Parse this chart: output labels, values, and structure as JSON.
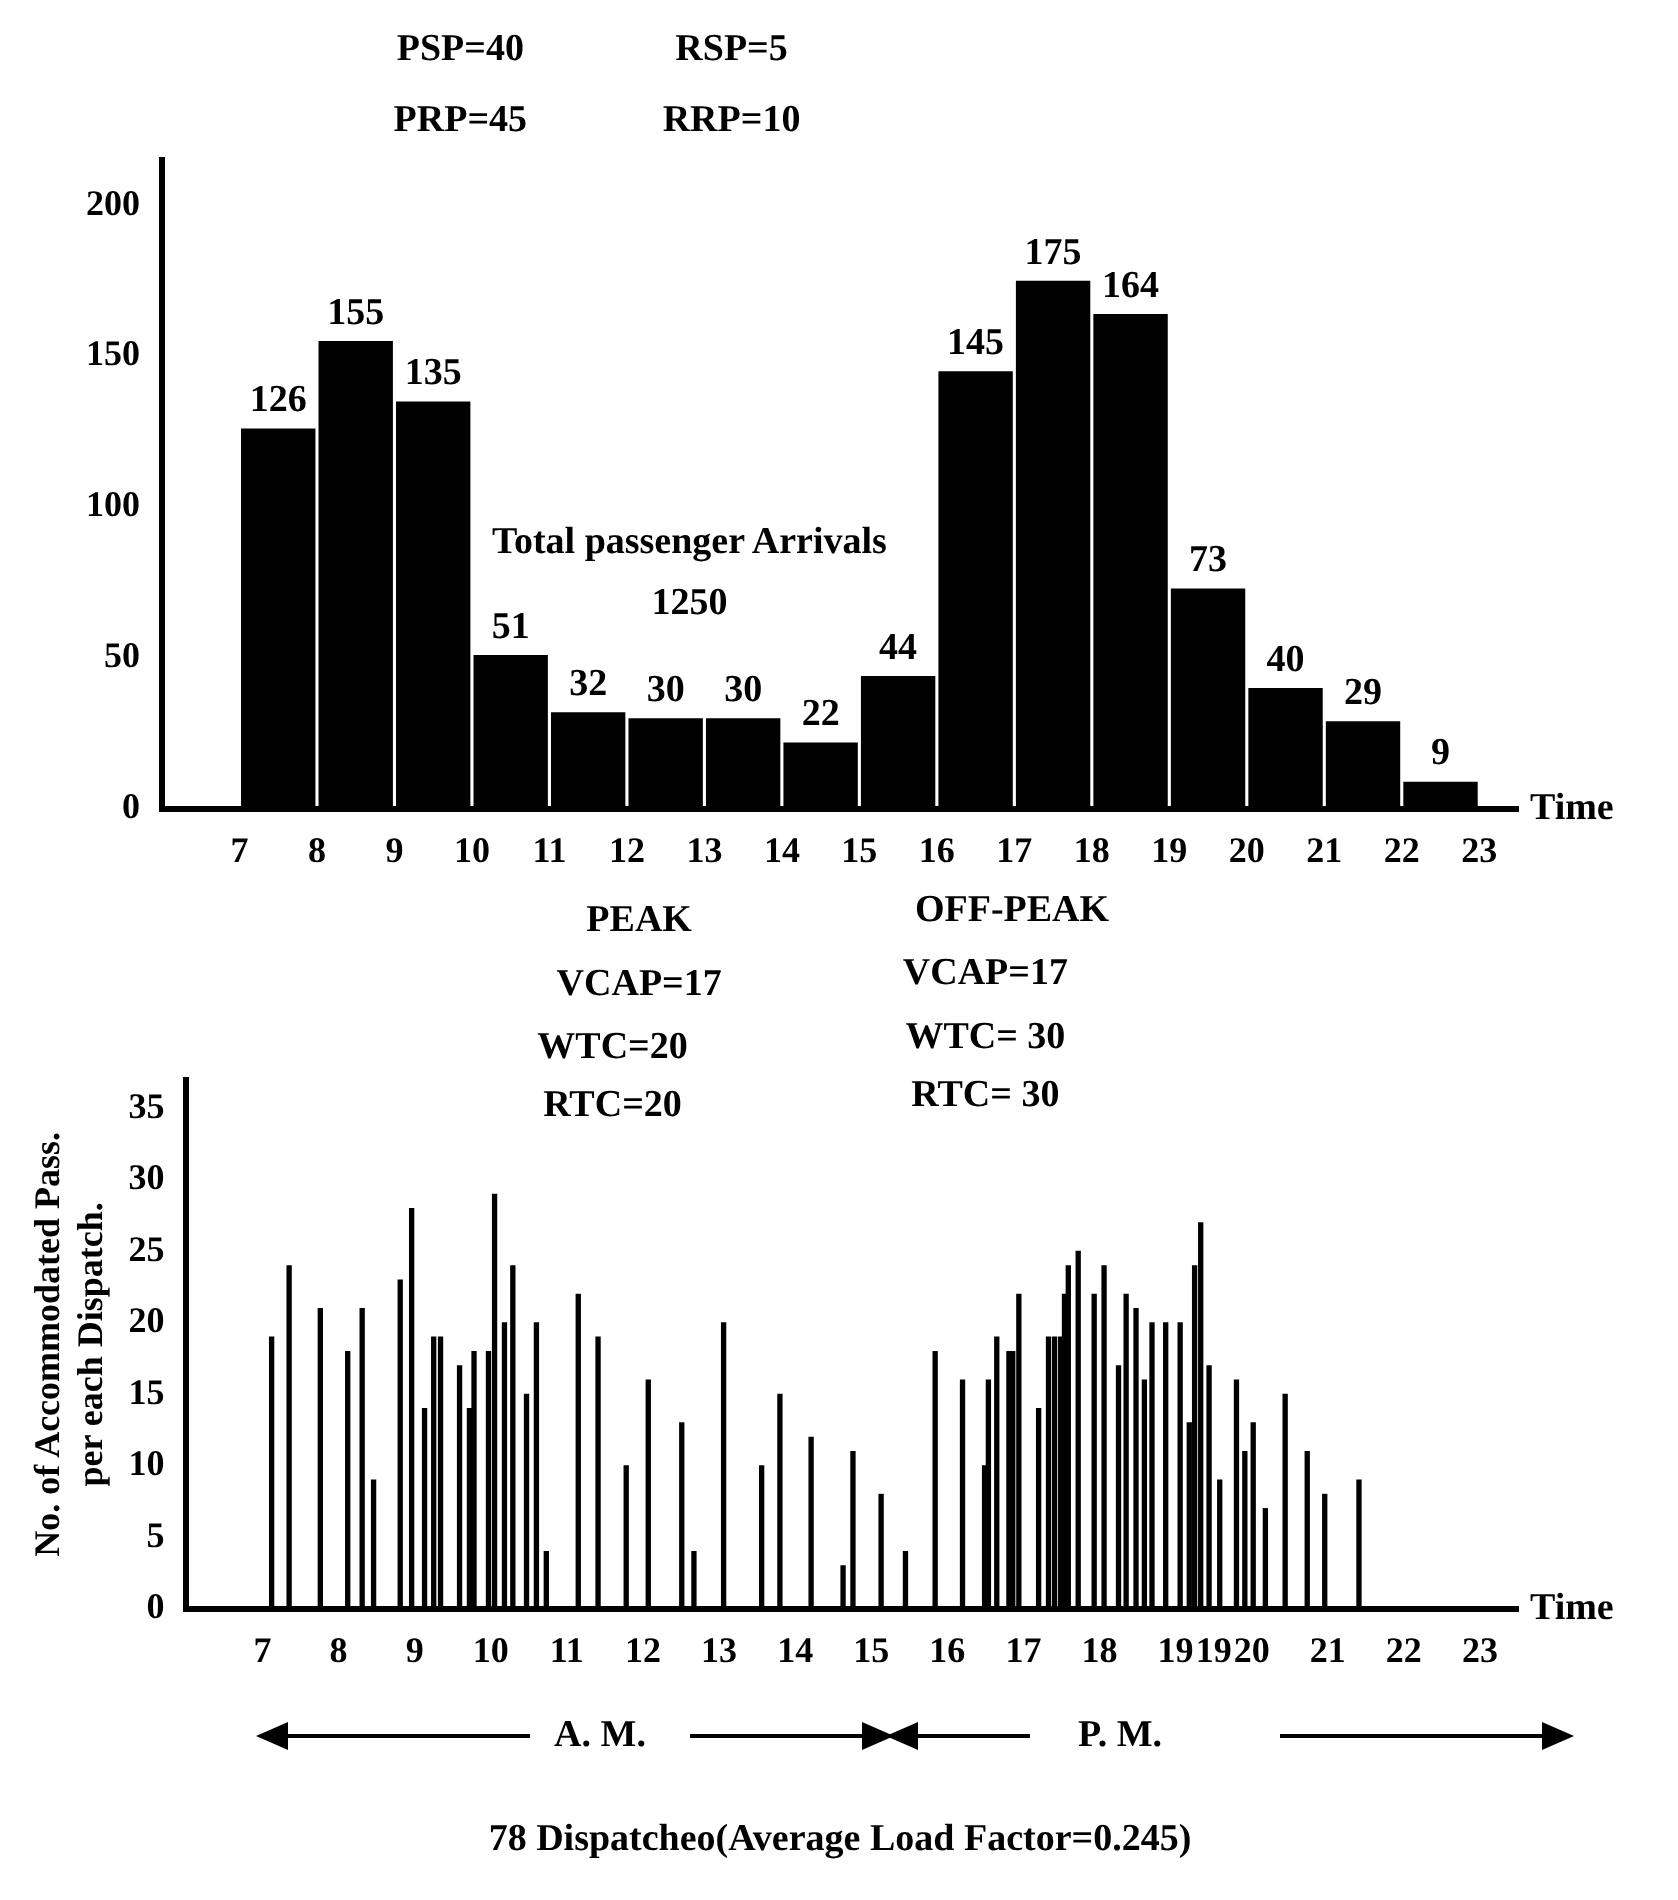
{
  "chart_data": [
    {
      "type": "histogram",
      "xlabel": "Time",
      "bins": [
        7,
        8,
        9,
        10,
        11,
        12,
        13,
        14,
        15,
        16,
        17,
        18,
        19,
        20,
        21,
        22,
        23
      ],
      "values": [
        126,
        155,
        135,
        51,
        32,
        30,
        30,
        22,
        44,
        145,
        175,
        164,
        73,
        40,
        29,
        9
      ],
      "color": "#000000",
      "data_labels": true,
      "xlim": [
        6,
        23.5
      ],
      "xticks": [
        7,
        8,
        9,
        10,
        11,
        12,
        13,
        14,
        15,
        16,
        17,
        18,
        19,
        20,
        21,
        22,
        23
      ],
      "ylim": [
        0,
        215
      ],
      "yticks": [
        0,
        50,
        100,
        150,
        200
      ],
      "grid": false,
      "annotations": [
        "PSP=40",
        "PRP=45",
        "RSP=5",
        "RRP=10",
        "1250",
        "Total passenger Arrivals"
      ]
    },
    {
      "type": "bar",
      "xlabel": "Time",
      "ylabel": "No. of Accommodated Pass.\nper each Dispatch.",
      "color": "#000000",
      "x": [
        7.12,
        7.35,
        7.76,
        8.12,
        8.31,
        8.46,
        8.81,
        8.96,
        9.13,
        9.25,
        9.34,
        9.59,
        9.72,
        9.78,
        9.97,
        10.05,
        10.18,
        10.29,
        10.47,
        10.6,
        10.73,
        11.15,
        11.41,
        11.78,
        12.07,
        12.51,
        12.67,
        13.06,
        13.56,
        13.8,
        14.21,
        14.63,
        14.76,
        15.13,
        15.45,
        15.84,
        16.2,
        16.49,
        16.54,
        16.65,
        16.81,
        16.86,
        16.94,
        17.2,
        17.33,
        17.41,
        17.49,
        17.54,
        17.59,
        17.72,
        17.93,
        18.06,
        18.25,
        18.35,
        18.48,
        18.59,
        18.69,
        18.87,
        19.06,
        19.18,
        19.25,
        19.33,
        19.44,
        19.58,
        19.8,
        19.91,
        20.02,
        20.18,
        20.44,
        20.73,
        20.96,
        21.41
      ],
      "values": [
        19,
        24,
        21,
        18,
        21,
        9,
        23,
        28,
        14,
        19,
        19,
        17,
        14,
        18,
        18,
        29,
        20,
        24,
        15,
        20,
        4,
        22,
        19,
        10,
        16,
        13,
        4,
        20,
        10,
        15,
        12,
        3,
        11,
        8,
        4,
        18,
        16,
        10,
        16,
        19,
        18,
        18,
        22,
        14,
        19,
        19,
        19,
        22,
        24,
        25,
        22,
        24,
        17,
        22,
        21,
        16,
        20,
        20,
        20,
        13,
        24,
        27,
        17,
        9,
        16,
        11,
        13,
        7,
        15,
        11,
        8,
        9
      ],
      "xlim": [
        6,
        23.5
      ],
      "xticks": [
        7,
        8,
        9,
        10,
        11,
        12,
        13,
        14,
        15,
        16,
        17,
        18,
        19,
        {
          "value": 19.5,
          "label": "19"
        },
        20,
        21,
        22,
        23
      ],
      "ylim": [
        0,
        37
      ],
      "yticks": [
        0,
        5,
        10,
        15,
        20,
        25,
        30,
        35
      ],
      "grid": false,
      "annotations": [
        "PEAK",
        "VCAP=17",
        "WTC=20",
        "RTC=20",
        "OFF-PEAK",
        "VCAP=17",
        "WTC= 30",
        "RTC= 30",
        "A. M.",
        "P. M.",
        "78 Dispatcheo(Average Load Factor=0.245)"
      ]
    }
  ]
}
